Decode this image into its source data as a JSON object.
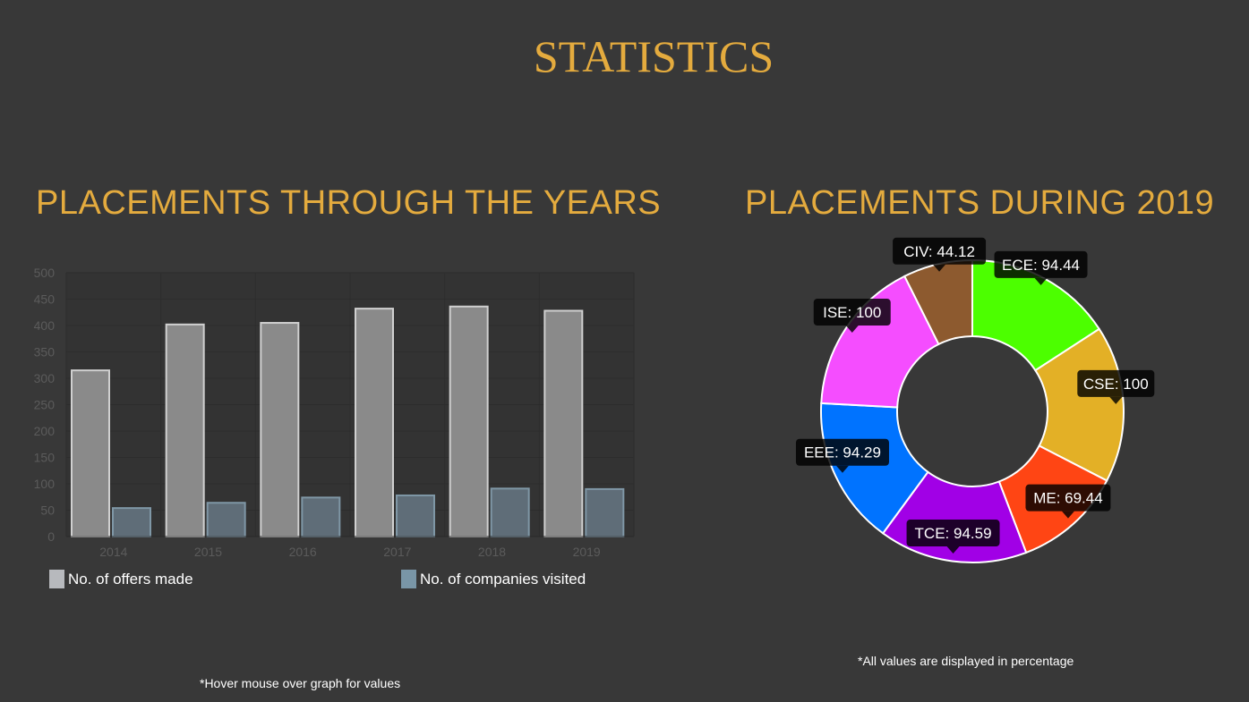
{
  "page": {
    "title": "STATISTICS"
  },
  "sections": {
    "bar": {
      "title": "PLACEMENTS THROUGH THE YEARS",
      "note": "*Hover mouse over graph for values"
    },
    "donut": {
      "title": "PLACEMENTS DURING 2019",
      "note": "*All values are displayed in percentage"
    }
  },
  "chart_data": [
    {
      "type": "bar",
      "categories": [
        "2014",
        "2015",
        "2016",
        "2017",
        "2018",
        "2019"
      ],
      "series": [
        {
          "name": "No. of offers made",
          "values": [
            315,
            402,
            405,
            432,
            436,
            428
          ],
          "color": "#8a8a8a",
          "legend_color": "#b7b9bd"
        },
        {
          "name": "No. of companies visited",
          "values": [
            54,
            64,
            74,
            78,
            91,
            90
          ],
          "color": "#5f6d78",
          "legend_color": "#7996a7"
        }
      ],
      "ylim": [
        0,
        500
      ],
      "yticks": [
        "0",
        "50",
        "100",
        "150",
        "200",
        "250",
        "300",
        "350",
        "400",
        "450",
        "500"
      ],
      "legend": "bottom",
      "grid": true
    },
    {
      "type": "pie",
      "variant": "doughnut",
      "slices": [
        {
          "label": "ECE",
          "value": 94.44,
          "text": "ECE: 94.44",
          "color": "#4cff00"
        },
        {
          "label": "CSE",
          "value": 100,
          "text": "CSE: 100",
          "color": "#e3b026"
        },
        {
          "label": "ME",
          "value": 69.44,
          "text": "ME: 69.44",
          "color": "#ff4514"
        },
        {
          "label": "TCE",
          "value": 94.59,
          "text": "TCE: 94.59",
          "color": "#a100e6"
        },
        {
          "label": "EEE",
          "value": 94.29,
          "text": "EEE: 94.29",
          "color": "#0073ff"
        },
        {
          "label": "ISE",
          "value": 100,
          "text": "ISE: 100",
          "color": "#f54dff"
        },
        {
          "label": "CIV",
          "value": 44.12,
          "text": "CIV: 44.12",
          "color": "#8d5a2f"
        }
      ],
      "legend": "none"
    }
  ]
}
